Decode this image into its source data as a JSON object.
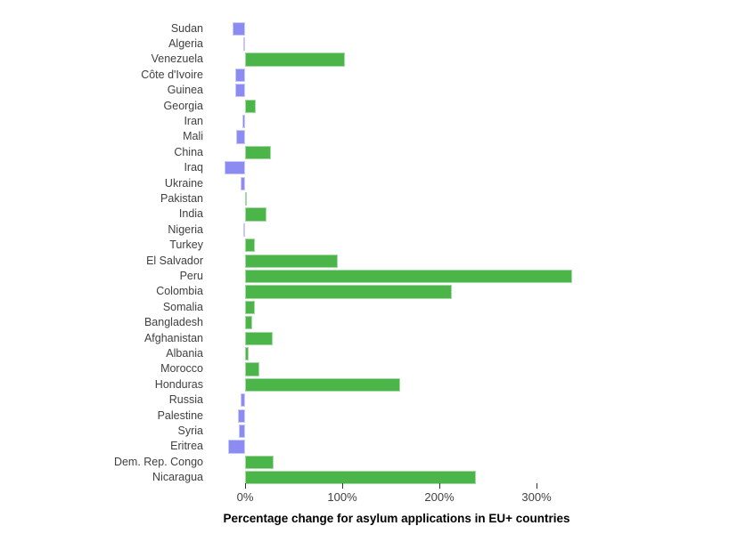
{
  "chart_data": {
    "type": "bar",
    "orientation": "horizontal",
    "xlabel": "Percentage change for asylum applications in EU+ countries",
    "categories": [
      "Sudan",
      "Algeria",
      "Venezuela",
      "Côte d'Ivoire",
      "Guinea",
      "Georgia",
      "Iran",
      "Mali",
      "China",
      "Iraq",
      "Ukraine",
      "Pakistan",
      "India",
      "Nigeria",
      "Turkey",
      "El Salvador",
      "Peru",
      "Colombia",
      "Somalia",
      "Bangladesh",
      "Afghanistan",
      "Albania",
      "Morocco",
      "Honduras",
      "Russia",
      "Palestine",
      "Syria",
      "Eritrea",
      "Dem. Rep. Congo",
      "Nicaragua"
    ],
    "values": [
      -13,
      -2,
      103,
      -10,
      -10,
      11,
      -3,
      -9,
      27,
      -21,
      -5,
      2,
      22,
      -2,
      10,
      95,
      337,
      213,
      10,
      7,
      28,
      4,
      15,
      160,
      -5,
      -7,
      -6,
      -17,
      29,
      238
    ],
    "x_ticks": [
      {
        "label": "0%",
        "value": 0
      },
      {
        "label": "100%",
        "value": 100
      },
      {
        "label": "200%",
        "value": 200
      },
      {
        "label": "300%",
        "value": 300
      }
    ],
    "xlim": [
      -40,
      355
    ],
    "grid": false,
    "legend": false,
    "positive_color": "#4CB54A",
    "negative_color": "#8B8BF1"
  }
}
